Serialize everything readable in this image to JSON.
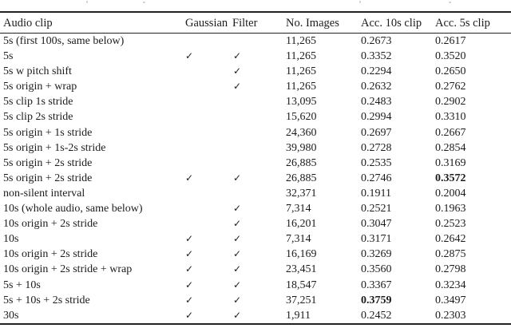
{
  "table": {
    "columns": [
      "Audio clip",
      "Gaussian",
      "Filter",
      "No. Images",
      "Acc. 10s clip",
      "Acc. 5s clip"
    ],
    "checkmark": "✓",
    "rows": [
      {
        "clip": "5s (first 100s, same below)",
        "gaussian": false,
        "filter": false,
        "images": "11,265",
        "acc10": "0.2673",
        "acc5": "0.2617",
        "bold": null
      },
      {
        "clip": "5s",
        "gaussian": true,
        "filter": true,
        "images": "11,265",
        "acc10": "0.3352",
        "acc5": "0.3520",
        "bold": null
      },
      {
        "clip": "5s w pitch shift",
        "gaussian": false,
        "filter": true,
        "images": "11,265",
        "acc10": "0.2294",
        "acc5": "0.2650",
        "bold": null
      },
      {
        "clip": "5s origin + wrap",
        "gaussian": false,
        "filter": true,
        "images": "11,265",
        "acc10": "0.2632",
        "acc5": "0.2762",
        "bold": null
      },
      {
        "clip": "5s clip 1s stride",
        "gaussian": false,
        "filter": false,
        "images": "13,095",
        "acc10": "0.2483",
        "acc5": "0.2902",
        "bold": null
      },
      {
        "clip": "5s clip 2s stride",
        "gaussian": false,
        "filter": false,
        "images": "15,620",
        "acc10": "0.2994",
        "acc5": "0.3310",
        "bold": null
      },
      {
        "clip": "5s origin + 1s stride",
        "gaussian": false,
        "filter": false,
        "images": "24,360",
        "acc10": "0.2697",
        "acc5": "0.2667",
        "bold": null
      },
      {
        "clip": "5s origin + 1s-2s stride",
        "gaussian": false,
        "filter": false,
        "images": "39,980",
        "acc10": "0.2728",
        "acc5": "0.2854",
        "bold": null
      },
      {
        "clip": "5s origin + 2s stride",
        "gaussian": false,
        "filter": false,
        "images": "26,885",
        "acc10": "0.2535",
        "acc5": "0.3169",
        "bold": null
      },
      {
        "clip": "5s origin + 2s stride",
        "gaussian": true,
        "filter": true,
        "images": "26,885",
        "acc10": "0.2746",
        "acc5": "0.3572",
        "bold": "acc5"
      },
      {
        "clip": "non-silent interval",
        "gaussian": false,
        "filter": false,
        "images": "32,371",
        "acc10": "0.1911",
        "acc5": "0.2004",
        "bold": null
      },
      {
        "clip": "10s (whole audio, same below)",
        "gaussian": false,
        "filter": true,
        "images": "7,314",
        "acc10": "0.2521",
        "acc5": "0.1963",
        "bold": null
      },
      {
        "clip": "10s origin + 2s stride",
        "gaussian": false,
        "filter": true,
        "images": "16,201",
        "acc10": "0.3047",
        "acc5": "0.2523",
        "bold": null
      },
      {
        "clip": "10s",
        "gaussian": true,
        "filter": true,
        "images": "7,314",
        "acc10": "0.3171",
        "acc5": "0.2642",
        "bold": null
      },
      {
        "clip": "10s origin + 2s stride",
        "gaussian": true,
        "filter": true,
        "images": "16,169",
        "acc10": "0.3269",
        "acc5": "0.2875",
        "bold": null
      },
      {
        "clip": "10s origin + 2s stride + wrap",
        "gaussian": true,
        "filter": true,
        "images": "23,451",
        "acc10": "0.3560",
        "acc5": "0.2798",
        "bold": null
      },
      {
        "clip": "5s + 10s",
        "gaussian": true,
        "filter": true,
        "images": "18,547",
        "acc10": "0.3367",
        "acc5": "0.3234",
        "bold": null
      },
      {
        "clip": "5s + 10s + 2s stride",
        "gaussian": true,
        "filter": true,
        "images": "37,251",
        "acc10": "0.3759",
        "acc5": "0.3497",
        "bold": "acc10"
      },
      {
        "clip": "30s",
        "gaussian": true,
        "filter": true,
        "images": "1,911",
        "acc10": "0.2452",
        "acc5": "0.2303",
        "bold": null
      }
    ]
  }
}
